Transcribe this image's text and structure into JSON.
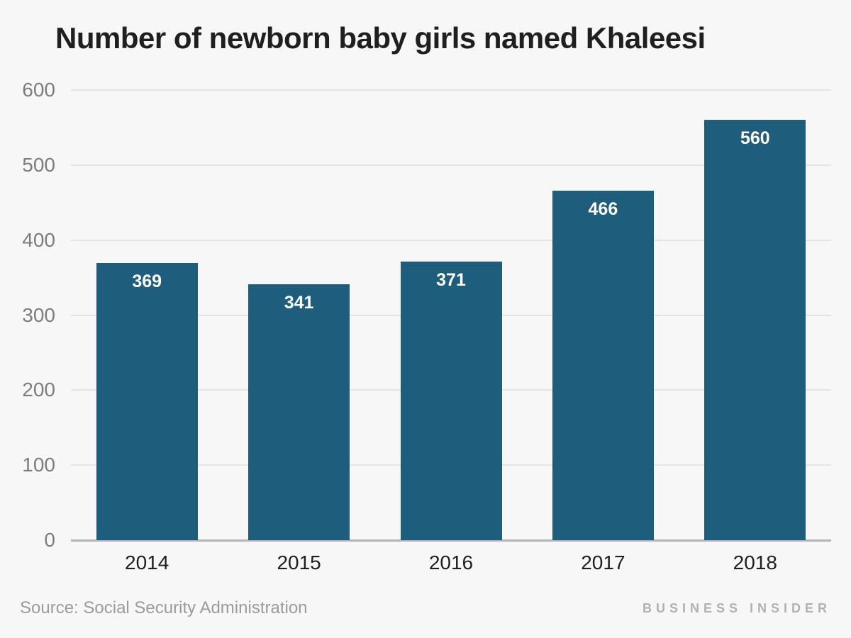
{
  "title": "Number of newborn baby girls named Khaleesi",
  "footer": {
    "source": "Source: Social Security Administration",
    "brand": "BUSINESS INSIDER"
  },
  "colors": {
    "background": "#f7f7f8",
    "bar": "#1e5e7c",
    "gridline": "#e4e4e5",
    "baseline": "#b4b4b6",
    "title_text": "#1f1f1f",
    "ytick_text": "#7d7d7f",
    "xtick_text": "#202022",
    "bar_value_text": "#ffffff",
    "source_text": "#9b9b9d",
    "brand_text": "#b1b1b3"
  },
  "chart_data": {
    "type": "bar",
    "title": "Number of newborn baby girls named Khaleesi",
    "categories": [
      "2014",
      "2015",
      "2016",
      "2017",
      "2018"
    ],
    "values": [
      369,
      341,
      371,
      466,
      560
    ],
    "bar_labels": [
      "369",
      "341",
      "371",
      "466",
      "560"
    ],
    "xlabel": "",
    "ylabel": "",
    "ylim": [
      0,
      600
    ],
    "yticks": [
      0,
      100,
      200,
      300,
      400,
      500,
      600
    ],
    "grid": true,
    "legend": "none",
    "bar_label_position": "inside-top"
  }
}
